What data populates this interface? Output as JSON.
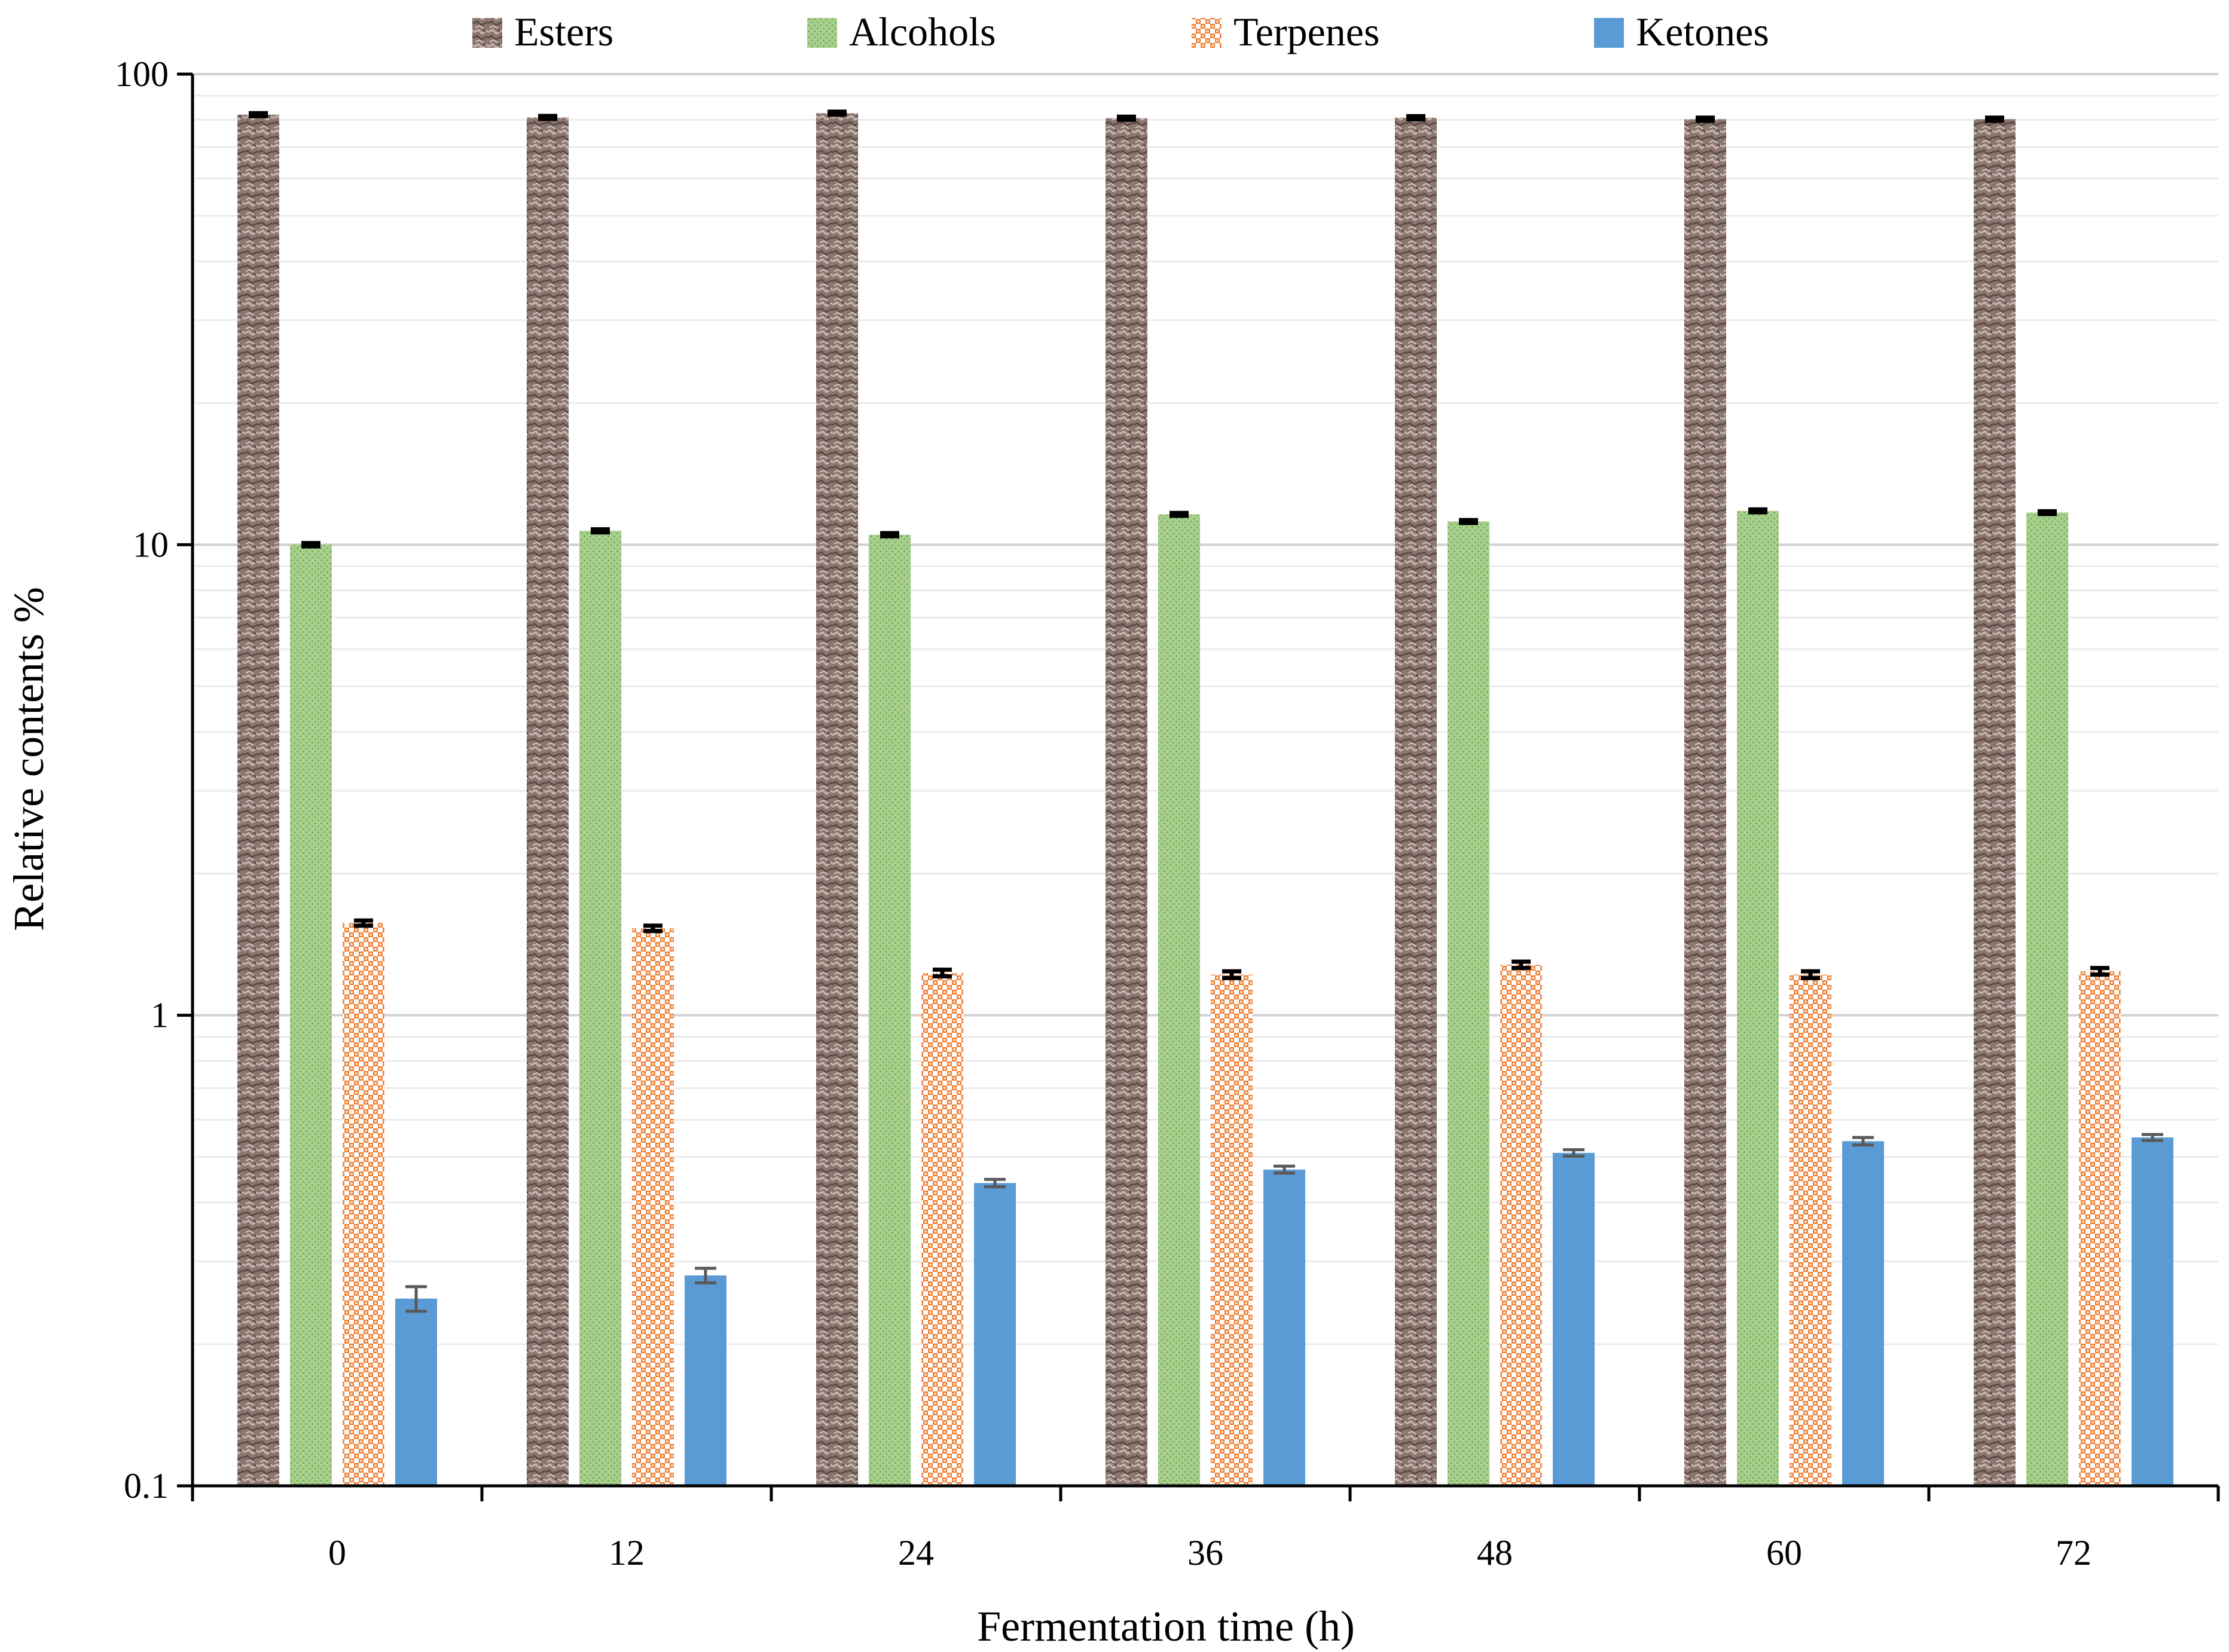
{
  "chart_data": {
    "type": "bar",
    "scale": "log",
    "xlabel": "Fermentation time (h)",
    "ylabel": "Relative contents %",
    "ylim": [
      0.1,
      100
    ],
    "y_ticks": [
      {
        "value": 0.1,
        "label": "0.1"
      },
      {
        "value": 1,
        "label": "1"
      },
      {
        "value": 10,
        "label": "10"
      },
      {
        "value": 100,
        "label": "100"
      }
    ],
    "categories": [
      "0",
      "12",
      "24",
      "36",
      "48",
      "60",
      "72"
    ],
    "legend_position": "top",
    "series": [
      {
        "name": "Esters",
        "color": "#8b7770",
        "pattern": "texture",
        "values": [
          82.0,
          80.9,
          82.6,
          80.6,
          80.8,
          80.2,
          80.2
        ],
        "errors": [
          0.6,
          0.6,
          0.6,
          0.6,
          0.6,
          0.6,
          0.6
        ]
      },
      {
        "name": "Alcohols",
        "color": "#a8d08d",
        "pattern": "dots",
        "values": [
          10.0,
          10.7,
          10.5,
          11.6,
          11.2,
          11.8,
          11.7
        ],
        "errors": [
          0.08,
          0.08,
          0.08,
          0.08,
          0.08,
          0.08,
          0.08
        ]
      },
      {
        "name": "Terpenes",
        "color": "#f4b183",
        "pattern": "checker",
        "values": [
          1.57,
          1.53,
          1.23,
          1.22,
          1.28,
          1.22,
          1.24
        ],
        "errors": [
          0.02,
          0.02,
          0.02,
          0.02,
          0.02,
          0.02,
          0.02
        ]
      },
      {
        "name": "Ketones",
        "color": "#5b9bd5",
        "pattern": "solid",
        "values": [
          0.25,
          0.28,
          0.44,
          0.47,
          0.51,
          0.54,
          0.55
        ],
        "errors": [
          0.015,
          0.01,
          0.008,
          0.008,
          0.008,
          0.01,
          0.008
        ]
      }
    ]
  }
}
